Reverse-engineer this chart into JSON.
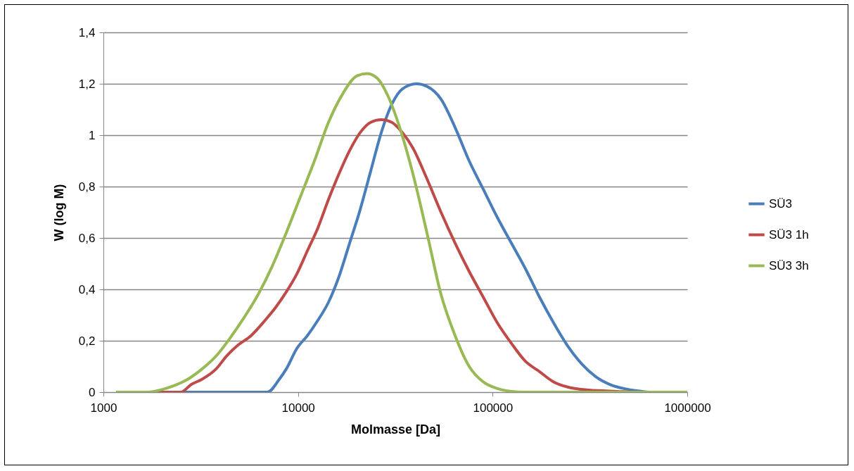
{
  "chart_data": {
    "type": "line",
    "xlabel": "Molmasse [Da]",
    "ylabel": "W (log M)",
    "log": "x",
    "xlim": [
      1000,
      1000000
    ],
    "xticks": [
      1000,
      10000,
      100000,
      1000000
    ],
    "ylim": [
      0,
      1.4
    ],
    "yticks": [
      0,
      {
        "value": 0.2,
        "label": "0,2"
      },
      {
        "value": 0.4,
        "label": "0,4"
      },
      {
        "value": 0.6,
        "label": "0,6"
      },
      {
        "value": 0.8,
        "label": "0,8"
      },
      1,
      {
        "value": 1.2,
        "label": "1,2"
      },
      {
        "value": 1.4,
        "label": "1,4"
      }
    ],
    "grid": "y",
    "legend": "right",
    "line_style": "solid",
    "series": [
      {
        "name": "SÜ3",
        "color": "#4a7ebb",
        "x": [
          1180,
          6950,
          8010,
          8700,
          9860,
          11170,
          12660,
          14340,
          16240,
          18410,
          20850,
          23620,
          26770,
          30320,
          34360,
          40580,
          45960,
          54290,
          64120,
          75730,
          89450,
          105660,
          124800,
          147390,
          174100,
          205600,
          242900,
          286800,
          338800,
          400100,
          472500,
          558100,
          659000,
          1000000
        ],
        "values": [
          0,
          0,
          0.05,
          0.09,
          0.17,
          0.22,
          0.28,
          0.35,
          0.45,
          0.58,
          0.71,
          0.86,
          1.01,
          1.12,
          1.18,
          1.2,
          1.19,
          1.14,
          1.03,
          0.9,
          0.79,
          0.68,
          0.58,
          0.48,
          0.37,
          0.27,
          0.18,
          0.11,
          0.06,
          0.03,
          0.014,
          0.005,
          0,
          0
        ]
      },
      {
        "name": "SÜ3 1h",
        "color": "#be4b48",
        "x": [
          1180,
          2500,
          2830,
          3210,
          3790,
          4290,
          4860,
          5740,
          6780,
          7680,
          8700,
          9860,
          11170,
          12660,
          14340,
          16240,
          18410,
          20850,
          23620,
          26770,
          30320,
          34360,
          38920,
          45960,
          54290,
          64120,
          75730,
          89450,
          105660,
          124800,
          147390,
          174100,
          205600,
          242900,
          311600,
          434700,
          558100,
          1000000
        ],
        "values": [
          0,
          0,
          0.03,
          0.05,
          0.09,
          0.14,
          0.18,
          0.22,
          0.28,
          0.33,
          0.39,
          0.46,
          0.55,
          0.64,
          0.75,
          0.85,
          0.94,
          1.01,
          1.05,
          1.06,
          1.05,
          1.01,
          0.95,
          0.83,
          0.7,
          0.58,
          0.47,
          0.37,
          0.27,
          0.19,
          0.12,
          0.08,
          0.04,
          0.02,
          0.008,
          0.003,
          0,
          0
        ]
      },
      {
        "name": "SÜ3 3h",
        "color": "#98b954",
        "x": [
          1180,
          1650,
          1950,
          2300,
          2710,
          3210,
          3790,
          4470,
          5280,
          6240,
          7370,
          8700,
          10280,
          12140,
          14340,
          16940,
          20010,
          22660,
          25670,
          29090,
          32960,
          38920,
          45960,
          54290,
          64120,
          75730,
          89450,
          105660,
          124800,
          147390,
          1000000
        ],
        "values": [
          0,
          0,
          0.008,
          0.025,
          0.05,
          0.09,
          0.14,
          0.21,
          0.29,
          0.38,
          0.49,
          0.62,
          0.76,
          0.9,
          1.05,
          1.16,
          1.23,
          1.24,
          1.22,
          1.15,
          1.04,
          0.85,
          0.62,
          0.38,
          0.22,
          0.1,
          0.04,
          0.014,
          0.003,
          0,
          0
        ]
      }
    ]
  }
}
